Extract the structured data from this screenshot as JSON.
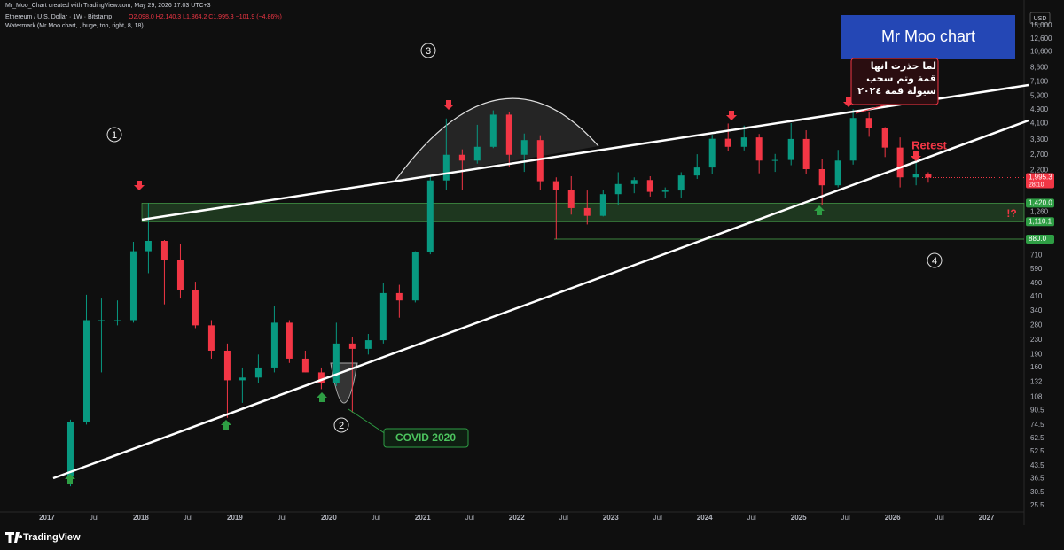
{
  "header": {
    "credit": "Mr_Moo_Chart created with TradingView.com, May 29, 2026 17:03 UTC+3",
    "symbol": "Ethereum / U.S. Dollar · 1W · Bitstamp",
    "ohlc": "O2,098.0 H2,140.3 L1,864.2 C1,995.3 −101.9 (−4.86%)",
    "watermark_info": "Watermark (Mr Moo chart, , huge, top, right, 8, 18)"
  },
  "currency": "USD",
  "watermark": "Mr Moo chart",
  "footer": "TradingView",
  "chart_data": {
    "type": "candlestick",
    "log_scale": true,
    "grid": false,
    "up_color": "#089981",
    "down_color": "#f23645",
    "x": [
      2017.25,
      2017.42,
      2017.58,
      2017.75,
      2017.92,
      2018.08,
      2018.25,
      2018.42,
      2018.58,
      2018.75,
      2018.92,
      2019.08,
      2019.25,
      2019.42,
      2019.58,
      2019.75,
      2019.92,
      2020.08,
      2020.25,
      2020.42,
      2020.58,
      2020.75,
      2020.92,
      2021.08,
      2021.25,
      2021.42,
      2021.58,
      2021.75,
      2021.92,
      2022.08,
      2022.25,
      2022.42,
      2022.58,
      2022.75,
      2022.92,
      2023.08,
      2023.25,
      2023.42,
      2023.58,
      2023.75,
      2023.92,
      2024.08,
      2024.25,
      2024.42,
      2024.58,
      2024.75,
      2024.92,
      2025.08,
      2025.25,
      2025.42,
      2025.58,
      2025.75,
      2025.92,
      2026.08,
      2026.25,
      2026.38
    ],
    "open": [
      38,
      78,
      300,
      300,
      300,
      750,
      860,
      670,
      450,
      280,
      200,
      135,
      140,
      160,
      290,
      180,
      150,
      130,
      220,
      205,
      230,
      430,
      390,
      740,
      1920,
      2700,
      2500,
      3000,
      4600,
      2700,
      3280,
      1900,
      1700,
      1330,
      1200,
      1600,
      1830,
      1930,
      1650,
      1680,
      2050,
      2280,
      3340,
      3000,
      3400,
      2500,
      2520,
      3330,
      2230,
      1800,
      2500,
      4400,
      3850,
      2970,
      2000,
      2100
    ],
    "high": [
      80,
      420,
      400,
      390,
      850,
      1420,
      870,
      830,
      500,
      300,
      220,
      160,
      190,
      360,
      300,
      200,
      160,
      290,
      240,
      250,
      490,
      480,
      750,
      2050,
      4370,
      2900,
      4020,
      4870,
      4750,
      3580,
      3500,
      2000,
      2030,
      1680,
      1700,
      2140,
      2000,
      2030,
      1750,
      2140,
      2720,
      3520,
      4090,
      3980,
      3560,
      2730,
      4110,
      3740,
      2550,
      2880,
      4950,
      4760,
      3900,
      3400,
      2450,
      2140
    ],
    "low": [
      33,
      75,
      150,
      280,
      290,
      560,
      370,
      400,
      270,
      180,
      82,
      100,
      130,
      150,
      170,
      150,
      120,
      125,
      88,
      190,
      220,
      310,
      380,
      720,
      1700,
      1700,
      2400,
      2950,
      2300,
      2150,
      1700,
      880,
      1220,
      1070,
      1190,
      1380,
      1620,
      1550,
      1520,
      1520,
      1960,
      2100,
      2850,
      2860,
      2110,
      2150,
      2350,
      2100,
      1390,
      1750,
      2370,
      3430,
      2620,
      1750,
      1800,
      1864
    ],
    "close": [
      78,
      300,
      300,
      300,
      750,
      860,
      670,
      450,
      280,
      200,
      135,
      140,
      160,
      290,
      180,
      150,
      130,
      220,
      205,
      230,
      430,
      390,
      740,
      1920,
      2700,
      2500,
      3000,
      4600,
      2700,
      3280,
      1900,
      1700,
      1330,
      1200,
      1600,
      1830,
      1930,
      1650,
      1680,
      2050,
      2280,
      3340,
      3000,
      3400,
      2500,
      2520,
      3330,
      2230,
      1800,
      2500,
      4400,
      3850,
      2970,
      2000,
      2100,
      1995
    ],
    "xlim": [
      2016.5,
      2027.4
    ],
    "ylim": [
      23.5,
      18750
    ],
    "xticks": [
      2017,
      {
        "value": 2017.5,
        "label": "Jul"
      },
      2018,
      {
        "value": 2018.5,
        "label": "Jul"
      },
      2019,
      {
        "value": 2019.5,
        "label": "Jul"
      },
      2020,
      {
        "value": 2020.5,
        "label": "Jul"
      },
      2021,
      {
        "value": 2021.5,
        "label": "Jul"
      },
      2022,
      {
        "value": 2022.5,
        "label": "Jul"
      },
      2023,
      {
        "value": 2023.5,
        "label": "Jul"
      },
      2024,
      {
        "value": 2024.5,
        "label": "Jul"
      },
      2025,
      {
        "value": 2025.5,
        "label": "Jul"
      },
      2026,
      {
        "value": 2026.5,
        "label": "Jul"
      },
      2027
    ],
    "yticks": [
      {
        "value": 15000,
        "label": "15,000"
      },
      {
        "value": 12600,
        "label": "12,600"
      },
      {
        "value": 10600,
        "label": "10,600"
      },
      {
        "value": 8600,
        "label": "8,600"
      },
      {
        "value": 7100,
        "label": "7,100"
      },
      {
        "value": 5900,
        "label": "5,900"
      },
      {
        "value": 4900,
        "label": "4,900"
      },
      {
        "value": 4100,
        "label": "4,100"
      },
      {
        "value": 3300,
        "label": "3,300"
      },
      {
        "value": 2700,
        "label": "2,700"
      },
      {
        "value": 2200,
        "label": "2,200"
      },
      {
        "value": 1260,
        "label": "1,260"
      },
      710,
      590,
      490,
      410,
      340,
      280,
      230,
      190,
      160,
      132,
      108,
      90.5,
      74.5,
      62.5,
      52.5,
      43.5,
      36.5,
      30.5,
      25.5
    ],
    "price_badges": [
      {
        "value": 1995.3,
        "label": "1,995.3",
        "color": "#f23645"
      },
      {
        "value": 1420,
        "label": "1,420.0",
        "color": "#2e9e44"
      },
      {
        "value": 1110.1,
        "label": "1,110.1",
        "color": "#2e9e44"
      },
      {
        "value": 880,
        "label": "880.0",
        "color": "#2e9e44"
      }
    ],
    "countdown": "28:10",
    "annotations": {
      "circle_1": "1",
      "circle_2": "2",
      "circle_3": "3",
      "circle_4": "4",
      "covid": "COVID 2020",
      "arabic": "لما حذرت انها قمة وتم سحب سيولة قمة ٢٠٢٤",
      "retest": "Retest",
      "question": "!?"
    }
  }
}
